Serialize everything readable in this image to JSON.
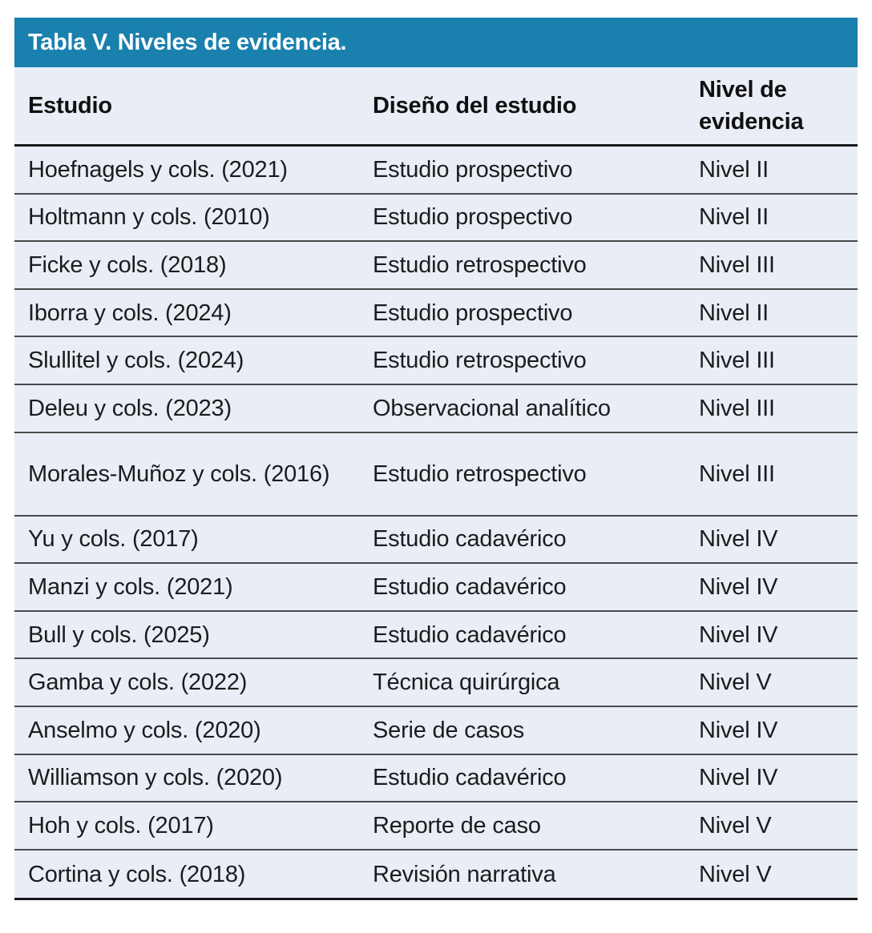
{
  "title": "Tabla V. Niveles de evidencia.",
  "columns": {
    "estudio": "Estudio",
    "diseno": "Diseño del estudio",
    "nivel": "Nivel de evidencia"
  },
  "rows": [
    {
      "estudio": "Hoefnagels y cols. (2021)",
      "diseno": "Estudio prospectivo",
      "nivel": "Nivel II"
    },
    {
      "estudio": "Holtmann y cols. (2010)",
      "diseno": "Estudio prospectivo",
      "nivel": "Nivel II"
    },
    {
      "estudio": "Ficke y cols. (2018)",
      "diseno": "Estudio retrospectivo",
      "nivel": "Nivel III"
    },
    {
      "estudio": "Iborra y cols. (2024)",
      "diseno": "Estudio prospectivo",
      "nivel": "Nivel II"
    },
    {
      "estudio": "Slullitel y cols. (2024)",
      "diseno": "Estudio retrospectivo",
      "nivel": "Nivel III"
    },
    {
      "estudio": "Deleu y cols. (2023)",
      "diseno": "Observacional analítico",
      "nivel": "Nivel III"
    },
    {
      "estudio": "Morales-Muñoz y cols. (2016)",
      "diseno": "Estudio retrospectivo",
      "nivel": "Nivel III"
    },
    {
      "estudio": "Yu y cols. (2017)",
      "diseno": "Estudio cadavérico",
      "nivel": "Nivel IV"
    },
    {
      "estudio": "Manzi y cols. (2021)",
      "diseno": "Estudio cadavérico",
      "nivel": "Nivel IV"
    },
    {
      "estudio": "Bull y cols. (2025)",
      "diseno": "Estudio cadavérico",
      "nivel": "Nivel IV"
    },
    {
      "estudio": "Gamba y cols. (2022)",
      "diseno": "Técnica quirúrgica",
      "nivel": "Nivel V"
    },
    {
      "estudio": "Anselmo y cols. (2020)",
      "diseno": "Serie de casos",
      "nivel": "Nivel IV"
    },
    {
      "estudio": "Williamson y cols. (2020)",
      "diseno": "Estudio cadavérico",
      "nivel": "Nivel IV"
    },
    {
      "estudio": "Hoh y cols. (2017)",
      "diseno": "Reporte de caso",
      "nivel": "Nivel V"
    },
    {
      "estudio": "Cortina y cols. (2018)",
      "diseno": "Revisión narrativa",
      "nivel": "Nivel V"
    }
  ],
  "colors": {
    "header_bg": "#1a80ad",
    "table_bg": "#e9edf6",
    "title_text": "#ffffff",
    "heading_text": "#101010",
    "body_text": "#1c1c1c",
    "line": "#4a4a4a",
    "line_strong": "#1a1a1a"
  }
}
